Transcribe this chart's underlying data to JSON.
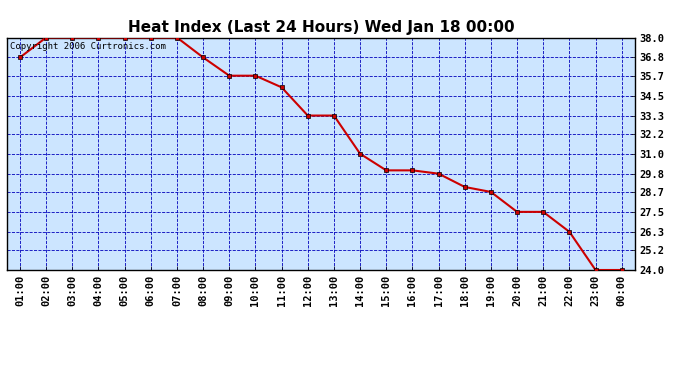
{
  "title": "Heat Index (Last 24 Hours) Wed Jan 18 00:00",
  "copyright": "Copyright 2006 Curtronics.com",
  "x_labels": [
    "01:00",
    "02:00",
    "03:00",
    "04:00",
    "05:00",
    "06:00",
    "07:00",
    "08:00",
    "09:00",
    "10:00",
    "11:00",
    "12:00",
    "13:00",
    "14:00",
    "15:00",
    "16:00",
    "17:00",
    "18:00",
    "19:00",
    "20:00",
    "21:00",
    "22:00",
    "23:00",
    "00:00"
  ],
  "y_values": [
    36.8,
    38.0,
    38.0,
    38.0,
    38.0,
    38.0,
    38.0,
    36.8,
    35.7,
    35.7,
    35.0,
    33.3,
    33.3,
    31.0,
    30.0,
    30.0,
    29.8,
    29.0,
    28.7,
    27.5,
    27.5,
    26.3,
    24.0,
    24.0
  ],
  "ylim_min": 24.0,
  "ylim_max": 38.0,
  "yticks": [
    24.0,
    25.2,
    26.3,
    27.5,
    28.7,
    29.8,
    31.0,
    32.2,
    33.3,
    34.5,
    35.7,
    36.8,
    38.0
  ],
  "line_color": "#cc0000",
  "marker": "s",
  "marker_size": 2.5,
  "marker_edge": "#000000",
  "bg_color": "#ffffff",
  "plot_bg": "#cce5ff",
  "grid_color": "#0000bb",
  "border_color": "#000000",
  "title_fontsize": 11,
  "tick_fontsize": 7.5,
  "copyright_fontsize": 6.5
}
